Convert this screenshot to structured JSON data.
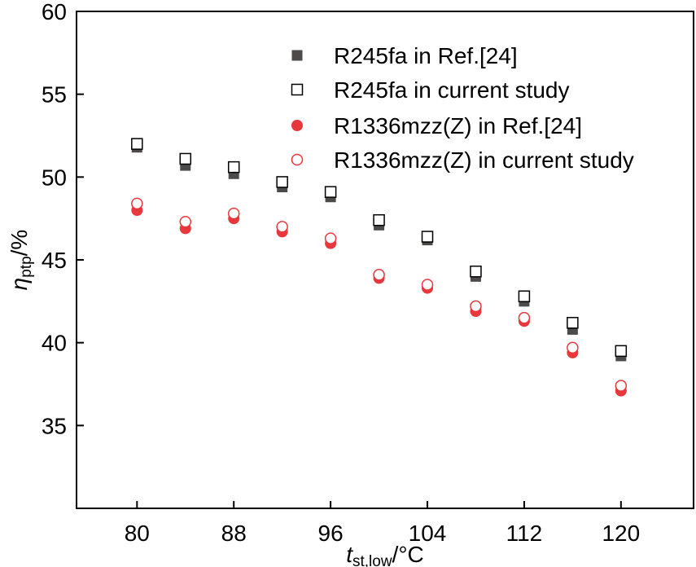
{
  "chart_data": {
    "type": "scatter",
    "title": "",
    "xlabel": {
      "main": "t",
      "sub": "st,low",
      "unit": "/°C"
    },
    "ylabel": {
      "main": "η",
      "sub": "ptp",
      "unit": "/%"
    },
    "xlim": [
      75,
      126
    ],
    "ylim": [
      30,
      60
    ],
    "xticks": [
      80,
      88,
      96,
      104,
      112,
      120
    ],
    "yticks": [
      35,
      40,
      45,
      50,
      55,
      60
    ],
    "grid": false,
    "legend_position": "top-right",
    "x": [
      80,
      84,
      88,
      92,
      96,
      100,
      104,
      108,
      112,
      116,
      120
    ],
    "series": [
      {
        "name": "R245fa in Ref.[24]",
        "marker": "square-filled",
        "color": "#4d4a4a",
        "values": [
          51.8,
          50.7,
          50.2,
          49.4,
          48.8,
          47.1,
          46.2,
          44.0,
          42.5,
          40.8,
          39.2
        ]
      },
      {
        "name": "R245fa in current study",
        "marker": "square-open",
        "color": "#000000",
        "values": [
          52.0,
          51.1,
          50.6,
          49.7,
          49.1,
          47.4,
          46.4,
          44.3,
          42.8,
          41.2,
          39.5
        ]
      },
      {
        "name": "R1336mzz(Z) in Ref.[24]",
        "marker": "circle-filled",
        "color": "#e8383d",
        "values": [
          48.0,
          46.9,
          47.5,
          46.7,
          46.0,
          43.9,
          43.3,
          41.9,
          41.3,
          39.4,
          37.1
        ]
      },
      {
        "name": "R1336mzz(Z) in current study",
        "marker": "circle-open",
        "color": "#e8383d",
        "values": [
          48.4,
          47.3,
          47.8,
          47.0,
          46.3,
          44.1,
          43.5,
          42.2,
          41.5,
          39.7,
          37.4
        ]
      }
    ]
  }
}
